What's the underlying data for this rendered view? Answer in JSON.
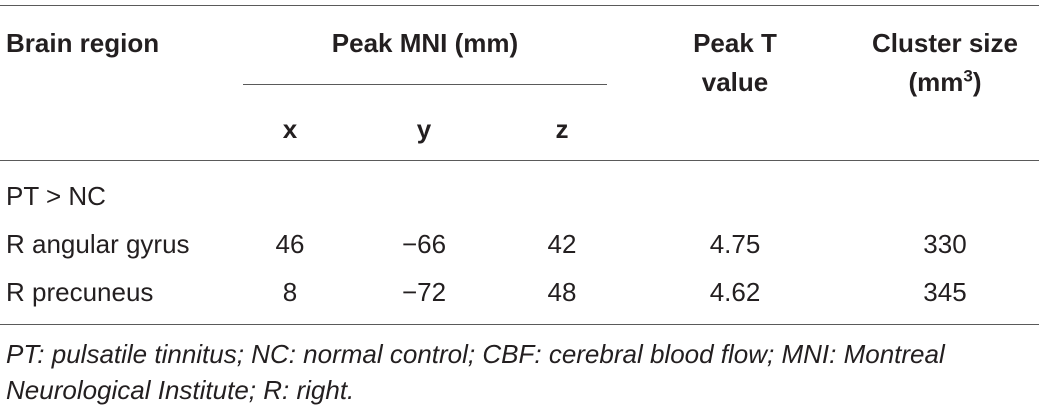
{
  "table": {
    "headers": {
      "brain_region": "Brain region",
      "peak_mni": "Peak MNI (mm)",
      "x": "x",
      "y": "y",
      "z": "z",
      "peak_t_line1": "Peak T",
      "peak_t_line2": "value",
      "cluster_line1": "Cluster size",
      "cluster_line2_base": "(mm",
      "cluster_line2_sup": "3",
      "cluster_line2_end": ")"
    },
    "group_label": "PT > NC",
    "rows": [
      {
        "region": "R angular gyrus",
        "x": "46",
        "y": "−66",
        "z": "42",
        "t": "4.75",
        "size": "330"
      },
      {
        "region": "R precuneus",
        "x": "8",
        "y": "−72",
        "z": "48",
        "t": "4.62",
        "size": "345"
      }
    ]
  },
  "footnote": "PT: pulsatile tinnitus; NC: normal control; CBF: cerebral blood flow; MNI: Montreal Neurological Institute; R: right."
}
